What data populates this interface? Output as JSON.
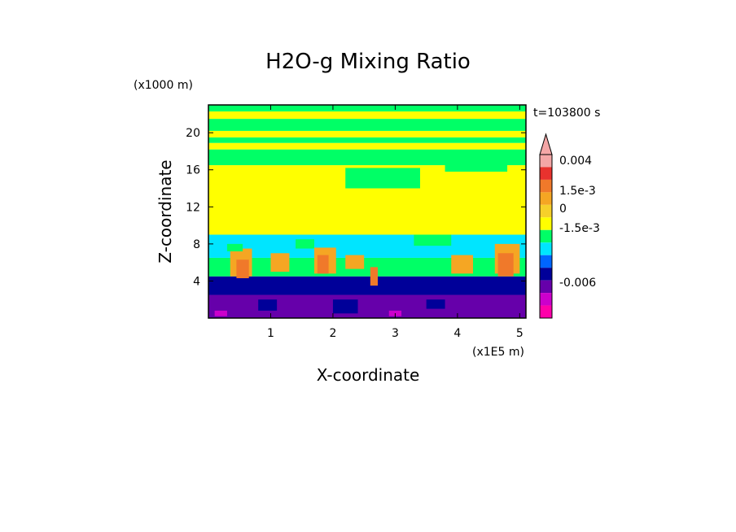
{
  "chart_data": {
    "type": "heatmap",
    "title": "H2O-g Mixing Ratio",
    "xlabel": "X-coordinate",
    "ylabel": "Z-coordinate",
    "x_unit": "(x1E5 m)",
    "y_unit": "(x1000 m)",
    "time_label": "t=103800 s",
    "xlim": [
      0.0,
      5.1
    ],
    "ylim": [
      0.0,
      23.0
    ],
    "x_ticks": [
      "1",
      "2",
      "3",
      "4",
      "5"
    ],
    "y_ticks": [
      "4",
      "8",
      "12",
      "16",
      "20"
    ],
    "colorbar": {
      "labels": [
        "0.004",
        "1.5e-3",
        "0",
        "-1.5e-3",
        "-0.006"
      ],
      "colors": [
        "#f4a6a6",
        "#e8322e",
        "#f0792a",
        "#f5a623",
        "#f6d02a",
        "#ffff00",
        "#00ff66",
        "#00e5ff",
        "#0066ff",
        "#000099",
        "#6600aa",
        "#cc00cc",
        "#ff00aa"
      ]
    },
    "bands": [
      {
        "z_bottom": 0.0,
        "z_top": 2.5,
        "color": "#6600aa"
      },
      {
        "z_bottom": 2.5,
        "z_top": 4.5,
        "color": "#000099"
      },
      {
        "z_bottom": 4.5,
        "z_top": 6.5,
        "color": "#00ff66"
      },
      {
        "z_bottom": 6.5,
        "z_top": 9.0,
        "color": "#00e5ff"
      },
      {
        "z_bottom": 9.0,
        "z_top": 16.5,
        "color": "#ffff00"
      },
      {
        "z_bottom": 16.5,
        "z_top": 18.2,
        "color": "#00ff66"
      },
      {
        "z_bottom": 18.2,
        "z_top": 18.9,
        "color": "#ffff00"
      },
      {
        "z_bottom": 18.9,
        "z_top": 19.5,
        "color": "#00ff66"
      },
      {
        "z_bottom": 19.5,
        "z_top": 20.2,
        "color": "#ffff00"
      },
      {
        "z_bottom": 20.2,
        "z_top": 21.5,
        "color": "#00ff66"
      },
      {
        "z_bottom": 21.5,
        "z_top": 22.3,
        "color": "#ffff00"
      },
      {
        "z_bottom": 22.3,
        "z_top": 23.0,
        "color": "#00ff66"
      }
    ],
    "cells": [
      {
        "x": 0.35,
        "z": 4.5,
        "w": 0.35,
        "h": 3.0,
        "color": "#f5a623"
      },
      {
        "x": 0.45,
        "z": 4.3,
        "w": 0.2,
        "h": 2.0,
        "color": "#f0792a"
      },
      {
        "x": 1.0,
        "z": 5.0,
        "w": 0.3,
        "h": 2.0,
        "color": "#f5a623"
      },
      {
        "x": 1.7,
        "z": 4.8,
        "w": 0.35,
        "h": 2.8,
        "color": "#f5a623"
      },
      {
        "x": 1.75,
        "z": 4.8,
        "w": 0.18,
        "h": 2.0,
        "color": "#f0792a"
      },
      {
        "x": 2.2,
        "z": 5.3,
        "w": 0.3,
        "h": 1.5,
        "color": "#f5a623"
      },
      {
        "x": 2.6,
        "z": 3.5,
        "w": 0.12,
        "h": 2.0,
        "color": "#f0792a"
      },
      {
        "x": 3.9,
        "z": 4.8,
        "w": 0.35,
        "h": 2.0,
        "color": "#f5a623"
      },
      {
        "x": 4.6,
        "z": 4.8,
        "w": 0.4,
        "h": 3.2,
        "color": "#f5a623"
      },
      {
        "x": 4.65,
        "z": 4.5,
        "w": 0.25,
        "h": 2.5,
        "color": "#f0792a"
      },
      {
        "x": 0.3,
        "z": 7.2,
        "w": 0.25,
        "h": 0.8,
        "color": "#00ff66"
      },
      {
        "x": 1.4,
        "z": 7.5,
        "w": 0.3,
        "h": 1.0,
        "color": "#00ff66"
      },
      {
        "x": 3.3,
        "z": 7.8,
        "w": 0.6,
        "h": 1.2,
        "color": "#00ff66"
      },
      {
        "x": 0.8,
        "z": 0.8,
        "w": 0.3,
        "h": 1.2,
        "color": "#000099"
      },
      {
        "x": 2.0,
        "z": 0.5,
        "w": 0.4,
        "h": 1.5,
        "color": "#000099"
      },
      {
        "x": 3.5,
        "z": 1.0,
        "w": 0.3,
        "h": 1.0,
        "color": "#000099"
      },
      {
        "x": 0.1,
        "z": 0.2,
        "w": 0.2,
        "h": 0.6,
        "color": "#cc00cc"
      },
      {
        "x": 2.9,
        "z": 0.2,
        "w": 0.2,
        "h": 0.6,
        "color": "#cc00cc"
      },
      {
        "x": 2.2,
        "z": 14.0,
        "w": 1.2,
        "h": 2.2,
        "color": "#00ff66"
      },
      {
        "x": 3.8,
        "z": 15.8,
        "w": 1.0,
        "h": 0.9,
        "color": "#00ff66"
      }
    ]
  }
}
